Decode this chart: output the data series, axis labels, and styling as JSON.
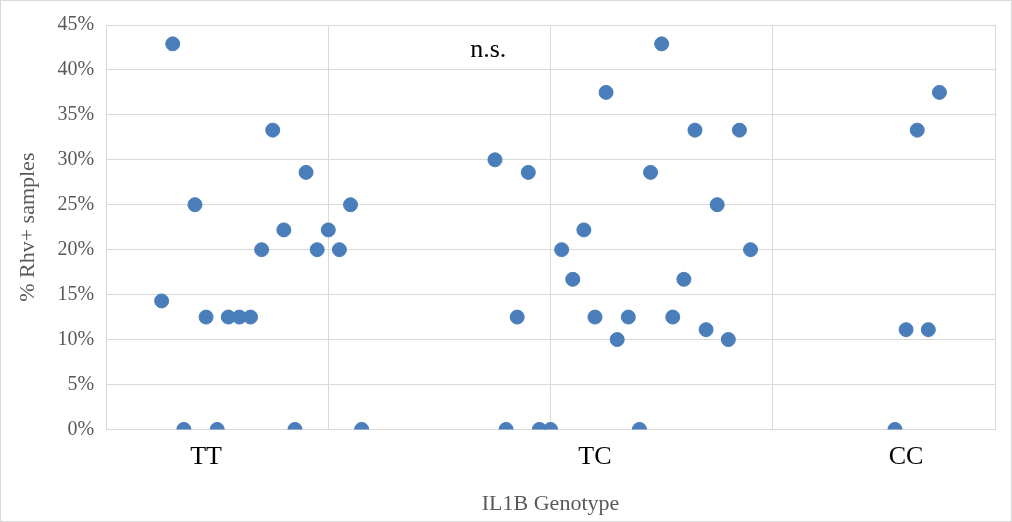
{
  "chart_data": {
    "type": "scatter",
    "xlabel": "IL1B Genotype",
    "ylabel": "% Rhv+ samples",
    "categories": [
      null,
      null,
      null,
      null,
      null,
      null,
      null,
      null,
      null,
      "TT",
      null,
      null,
      null,
      null,
      null,
      null,
      null,
      null,
      null,
      null,
      null,
      null,
      null,
      null,
      null,
      null,
      null,
      null,
      null,
      null,
      null,
      null,
      null,
      null,
      null,
      null,
      null,
      null,
      null,
      null,
      null,
      null,
      null,
      null,
      "TC",
      null,
      null,
      null,
      null,
      null,
      null,
      null,
      null,
      null,
      null,
      null,
      null,
      null,
      null,
      null,
      null,
      null,
      null,
      null,
      null,
      null,
      null,
      null,
      null,
      null,
      null,
      null,
      "CC",
      null,
      null,
      null,
      null,
      null,
      null,
      null,
      null
    ],
    "series": [
      {
        "color": "#4a7ebb",
        "values": [
          null,
          null,
          null,
          null,
          null,
          14.3,
          42.9,
          0,
          25,
          12.5,
          0,
          12.5,
          12.5,
          12.5,
          20,
          33.3,
          22.2,
          0,
          28.6,
          20,
          22.2,
          20,
          25,
          0,
          null,
          null,
          null,
          null,
          null,
          null,
          null,
          null,
          null,
          null,
          null,
          30,
          0,
          12.5,
          28.6,
          0,
          0,
          20,
          16.7,
          22.2,
          12.5,
          37.5,
          10,
          12.5,
          0,
          28.6,
          42.9,
          12.5,
          16.7,
          33.3,
          11.1,
          25,
          10,
          33.3,
          20,
          null,
          null,
          null,
          null,
          null,
          null,
          null,
          null,
          null,
          null,
          null,
          null,
          0,
          11.1,
          33.3,
          11.1,
          37.5,
          null,
          null,
          null,
          null,
          null
        ]
      }
    ],
    "ylim": [
      0,
      45
    ],
    "yticks": [
      {
        "value": 0,
        "label": "0%"
      },
      {
        "value": 5,
        "label": "5%"
      },
      {
        "value": 10,
        "label": "10%"
      },
      {
        "value": 15,
        "label": "15%"
      },
      {
        "value": 20,
        "label": "20%"
      },
      {
        "value": 25,
        "label": "25%"
      },
      {
        "value": 30,
        "label": "30%"
      },
      {
        "value": 35,
        "label": "35%"
      },
      {
        "value": 40,
        "label": "40%"
      },
      {
        "value": 45,
        "label": "45%"
      }
    ],
    "grid": true,
    "legend": false,
    "marker": "circle",
    "annotations": [
      "n.s."
    ]
  }
}
